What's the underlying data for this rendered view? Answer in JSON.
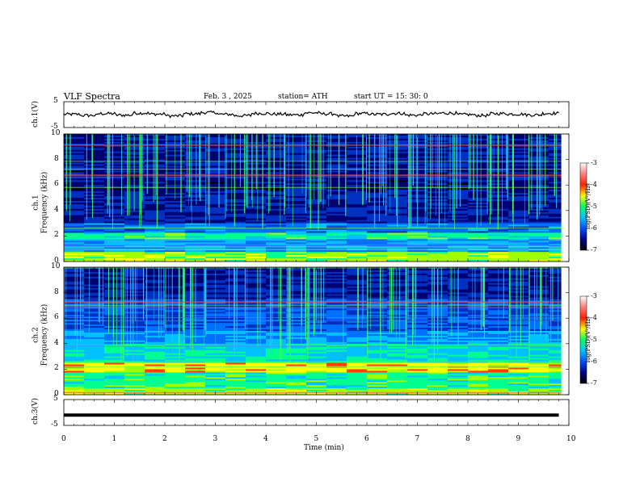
{
  "header": {
    "title": "VLF  Spectra",
    "date": "Feb. 3   , 2025",
    "station": "station= ATH",
    "start": "start  UT  =    15: 30: 0"
  },
  "chart_data": [
    {
      "type": "line",
      "name": "ch1-waveform",
      "ylabel": "ch.1(V)",
      "ylim": [
        -5,
        5
      ],
      "yticks": [
        "5",
        "-5"
      ],
      "xlim": [
        0,
        10
      ],
      "values": [
        0.1,
        -0.3,
        0.4,
        -0.2,
        0.6,
        0.2,
        -0.5,
        0.3,
        0.8,
        0.1,
        -0.4,
        0.5,
        0.2,
        -0.1,
        0.7,
        0.3,
        -0.6,
        0.4,
        0.1,
        0.5,
        -0.2,
        0.3,
        0.6,
        0.0,
        -0.3,
        0.4,
        0.2,
        -0.1,
        0.5,
        0.3
      ]
    },
    {
      "type": "heatmap",
      "name": "ch1-spectrogram",
      "ylabel": "ch.1\nFrequency  (kHz)",
      "ylim": [
        0,
        10
      ],
      "yticks": [
        "0",
        "2",
        "4",
        "6",
        "8",
        "10"
      ],
      "xlim": [
        0,
        10
      ],
      "colorbar": {
        "label": "log(PSD)(V²/Hz)",
        "ticks": [
          "-3",
          "-4",
          "-5",
          "-6",
          "-7"
        ]
      }
    },
    {
      "type": "heatmap",
      "name": "ch2-spectrogram",
      "ylabel": "ch.2\nFrequency  (kHz)",
      "ylim": [
        0,
        10
      ],
      "yticks": [
        "0",
        "2",
        "4",
        "6",
        "8",
        "10"
      ],
      "xlim": [
        0,
        10
      ],
      "colorbar": {
        "label": "log(PSD)(V²/Hz)",
        "ticks": [
          "-3",
          "-4",
          "-5",
          "-6",
          "-7"
        ]
      }
    },
    {
      "type": "line",
      "name": "ch3-waveform",
      "ylabel": "ch.3(V)",
      "ylim": [
        -5,
        5
      ],
      "yticks": [
        "5",
        "-5"
      ],
      "xlim": [
        0,
        10
      ],
      "values": [
        -1,
        -1,
        -1,
        -1,
        -1,
        -1,
        -1,
        -1,
        -1,
        -1,
        -1,
        -1,
        -1,
        -1,
        -1,
        -1,
        -1,
        -1,
        -1,
        -1,
        -1,
        -1,
        -1,
        -1,
        -1,
        -1,
        -1,
        -1,
        -1,
        -1
      ],
      "xlabel": "Time  (min)",
      "xticks": [
        "0",
        "1",
        "2",
        "3",
        "4",
        "5",
        "6",
        "7",
        "8",
        "9",
        "10"
      ]
    }
  ]
}
